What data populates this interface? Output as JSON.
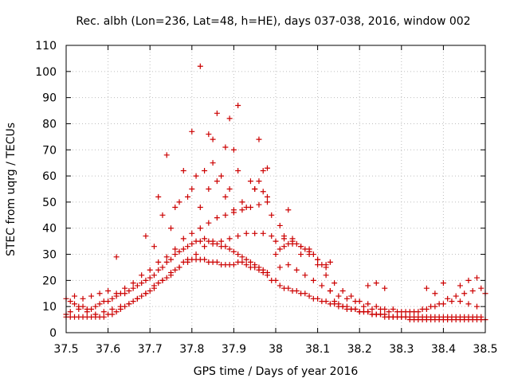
{
  "chart_data": {
    "type": "scatter",
    "title": "Rec. albh (Lon=236, Lat=48, h=HE), days 037-038, 2016, window 002",
    "xlabel": "GPS time / Days of year 2016",
    "ylabel": "STEC from uqrg / TECUs",
    "xlim": [
      37.5,
      38.5
    ],
    "ylim": [
      0,
      110
    ],
    "xticks": [
      "37.5",
      "37.6",
      "37.7",
      "37.8",
      "37.9",
      "38",
      "38.1",
      "38.2",
      "38.3",
      "38.4",
      "38.5"
    ],
    "yticks": [
      "0",
      "10",
      "20",
      "30",
      "40",
      "50",
      "60",
      "70",
      "80",
      "90",
      "100",
      "110"
    ],
    "grid": true,
    "marker": "plus",
    "color": "#cc0000",
    "series": [
      {
        "name": "STEC",
        "x": [
          37.5,
          37.51,
          37.52,
          37.53,
          37.54,
          37.55,
          37.56,
          37.57,
          37.58,
          37.59,
          37.6,
          37.61,
          37.62,
          37.63,
          37.64,
          37.65,
          37.66,
          37.67,
          37.68,
          37.69,
          37.7,
          37.71,
          37.72,
          37.73,
          37.74,
          37.75,
          37.76,
          37.77,
          37.78,
          37.79,
          37.8,
          37.81,
          37.82,
          37.83,
          37.84,
          37.85,
          37.86,
          37.87,
          37.88,
          37.89,
          37.9,
          37.91,
          37.92,
          37.93,
          37.94,
          37.95,
          37.96,
          37.97,
          37.98,
          37.99,
          37.5,
          37.51,
          37.52,
          37.53,
          37.54,
          37.55,
          37.56,
          37.57,
          37.58,
          37.59,
          37.6,
          37.61,
          37.62,
          37.63,
          37.64,
          37.65,
          37.66,
          37.67,
          37.68,
          37.69,
          37.7,
          37.71,
          37.72,
          37.73,
          37.74,
          37.75,
          37.76,
          37.77,
          37.78,
          37.79,
          37.8,
          37.81,
          37.82,
          37.83,
          37.84,
          37.85,
          37.86,
          37.87,
          37.88,
          37.89,
          37.9,
          37.91,
          37.92,
          37.93,
          37.94,
          37.95,
          37.96,
          37.97,
          37.98,
          37.5,
          37.51,
          37.53,
          37.55,
          37.57,
          37.59,
          37.61,
          37.63,
          37.65,
          37.67,
          37.69,
          37.71,
          37.73,
          37.75,
          37.77,
          37.79,
          37.81,
          37.83,
          37.85,
          37.87,
          37.89,
          37.91,
          37.93,
          37.95,
          37.97,
          37.99,
          37.52,
          37.54,
          37.56,
          37.58,
          37.6,
          37.62,
          37.64,
          37.66,
          37.68,
          37.7,
          37.72,
          37.74,
          37.76,
          37.78,
          37.8,
          37.82,
          37.84,
          37.86,
          37.88,
          37.9,
          37.92,
          37.94,
          37.96,
          37.98,
          37.72,
          37.73,
          37.75,
          37.76,
          37.77,
          37.79,
          37.8,
          37.81,
          37.82,
          37.83,
          37.84,
          37.85,
          37.86,
          37.87,
          37.88,
          37.89,
          37.9,
          37.91,
          37.92,
          37.93,
          37.95,
          37.96,
          37.97,
          37.98,
          37.99,
          37.62,
          37.69,
          37.71,
          37.74,
          37.78,
          37.8,
          37.82,
          37.84,
          37.85,
          37.86,
          37.88,
          37.89,
          37.9,
          37.91,
          37.94,
          37.95,
          37.96,
          37.97,
          37.98,
          38.0,
          38.01,
          38.02,
          38.03,
          38.04,
          38.05,
          38.06,
          38.07,
          38.08,
          38.09,
          38.1,
          38.11,
          38.12,
          38.13,
          38.14,
          38.15,
          38.16,
          38.17,
          38.18,
          38.19,
          38.2,
          38.21,
          38.22,
          38.23,
          38.24,
          38.25,
          38.26,
          38.27,
          38.28,
          38.29,
          38.3,
          38.31,
          38.32,
          38.33,
          38.34,
          38.35,
          38.36,
          38.37,
          38.38,
          38.39,
          38.4,
          38.41,
          38.42,
          38.43,
          38.44,
          38.45,
          38.46,
          38.47,
          38.48,
          38.49,
          38.5,
          38.0,
          38.01,
          38.02,
          38.03,
          38.04,
          38.05,
          38.06,
          38.07,
          38.08,
          38.09,
          38.1,
          38.11,
          38.12,
          38.13,
          38.14,
          38.15,
          38.16,
          38.17,
          38.18,
          38.19,
          38.2,
          38.21,
          38.22,
          38.23,
          38.24,
          38.25,
          38.26,
          38.27,
          38.28,
          38.29,
          38.3,
          38.31,
          38.32,
          38.33,
          38.34,
          38.35,
          38.36,
          38.37,
          38.38,
          38.39,
          38.4,
          38.41,
          38.42,
          38.43,
          38.44,
          38.45,
          38.46,
          38.47,
          38.48,
          38.49,
          38.0,
          38.02,
          38.04,
          38.06,
          38.08,
          38.1,
          38.12,
          38.14,
          38.16,
          38.18,
          38.2,
          38.22,
          38.24,
          38.26,
          38.28,
          38.3,
          38.32,
          38.34,
          38.36,
          38.38,
          38.4,
          38.42,
          38.44,
          38.46,
          38.48,
          38.01,
          38.03,
          38.05,
          38.07,
          38.09,
          38.11,
          38.13,
          38.15,
          38.17,
          38.19,
          38.21,
          38.23,
          38.25,
          38.27,
          38.29,
          38.31,
          38.33,
          38.35,
          38.37,
          38.39,
          38.41,
          38.43,
          38.45,
          38.47,
          38.49,
          38.01,
          38.02,
          38.03,
          38.04,
          38.06,
          38.08,
          38.1,
          38.12,
          38.13,
          38.22,
          38.24,
          38.26,
          38.36,
          38.38,
          38.4,
          38.44,
          38.46,
          38.48,
          38.5
        ],
        "y": [
          13,
          12,
          11,
          10,
          10,
          9,
          9,
          10,
          11,
          12,
          12,
          13,
          14,
          15,
          15,
          16,
          17,
          18,
          19,
          20,
          21,
          22,
          24,
          25,
          27,
          28,
          30,
          31,
          32,
          33,
          34,
          35,
          35,
          36,
          35,
          35,
          34,
          33,
          33,
          32,
          31,
          30,
          29,
          28,
          27,
          26,
          25,
          24,
          23,
          20,
          6,
          6,
          6,
          6,
          6,
          6,
          6,
          6,
          6,
          6,
          7,
          7,
          8,
          9,
          10,
          11,
          12,
          13,
          14,
          15,
          16,
          17,
          19,
          20,
          21,
          23,
          24,
          25,
          27,
          27,
          28,
          28,
          28,
          28,
          27,
          27,
          27,
          26,
          26,
          26,
          26,
          27,
          27,
          26,
          25,
          25,
          24,
          23,
          22,
          7,
          8,
          9,
          8,
          7,
          8,
          9,
          10,
          11,
          13,
          15,
          18,
          20,
          22,
          25,
          28,
          30,
          33,
          34,
          35,
          36,
          37,
          38,
          38,
          38,
          37,
          14,
          13,
          14,
          15,
          16,
          15,
          17,
          19,
          22,
          24,
          27,
          29,
          32,
          36,
          38,
          40,
          42,
          44,
          45,
          46,
          47,
          48,
          49,
          50,
          52,
          45,
          40,
          48,
          50,
          52,
          55,
          60,
          48,
          62,
          55,
          65,
          58,
          60,
          52,
          55,
          47,
          62,
          50,
          48,
          55,
          58,
          54,
          52,
          45,
          29,
          37,
          33,
          68,
          62,
          77,
          102,
          76,
          74,
          84,
          71,
          82,
          70,
          87,
          58,
          55,
          74,
          62,
          63,
          20,
          18,
          17,
          17,
          16,
          16,
          15,
          15,
          14,
          13,
          13,
          12,
          12,
          11,
          11,
          10,
          10,
          9,
          9,
          9,
          8,
          8,
          8,
          7,
          7,
          7,
          7,
          6,
          6,
          6,
          6,
          6,
          5,
          5,
          5,
          5,
          5,
          5,
          5,
          5,
          5,
          5,
          5,
          5,
          5,
          5,
          5,
          5,
          5,
          5,
          5,
          30,
          32,
          33,
          34,
          34,
          34,
          33,
          32,
          31,
          30,
          28,
          26,
          25,
          16,
          12,
          11,
          10,
          10,
          9,
          9,
          8,
          8,
          8,
          7,
          7,
          7,
          6,
          6,
          6,
          6,
          6,
          6,
          6,
          6,
          6,
          6,
          6,
          6,
          6,
          6,
          6,
          6,
          6,
          6,
          6,
          6,
          6,
          6,
          6,
          6,
          35,
          36,
          35,
          33,
          30,
          26,
          22,
          19,
          16,
          14,
          12,
          11,
          10,
          9,
          9,
          8,
          8,
          8,
          9,
          10,
          11,
          12,
          12,
          11,
          10,
          25,
          26,
          24,
          22,
          20,
          18,
          16,
          14,
          13,
          12,
          10,
          9,
          9,
          8,
          8,
          8,
          8,
          9,
          10,
          11,
          13,
          14,
          15,
          16,
          17,
          41,
          37,
          47,
          36,
          30,
          32,
          28,
          26,
          27,
          18,
          19,
          17,
          17,
          15,
          19,
          18,
          20,
          21,
          15
        ]
      }
    ]
  }
}
